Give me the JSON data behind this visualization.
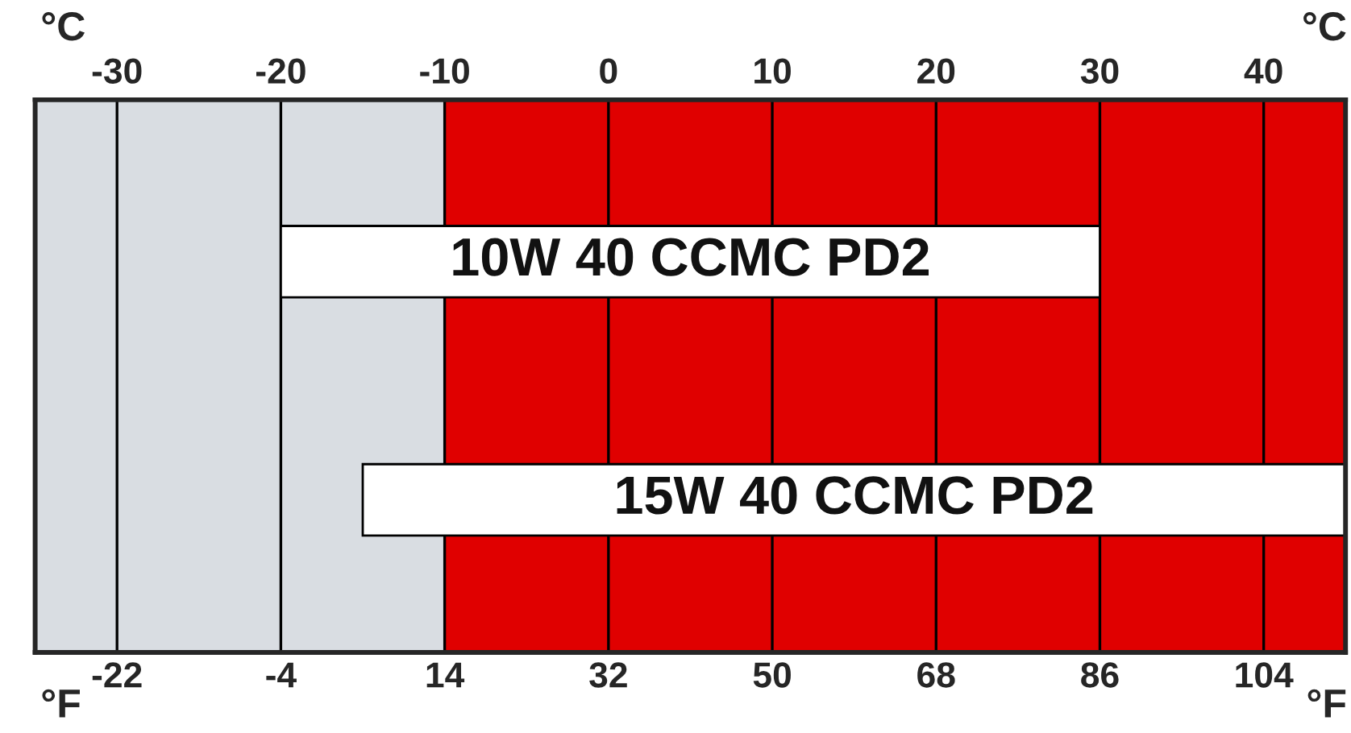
{
  "chart_data": {
    "type": "bar",
    "orientation": "horizontal",
    "categories": [
      "10W 40 CCMC PD2",
      "15W 40 CCMC PD2"
    ],
    "base": [
      -20,
      -15
    ],
    "values": [
      50,
      60
    ],
    "color": "#ffffff",
    "xlabel": "°C",
    "xlim": [
      -35,
      45
    ],
    "xticks": [
      -30,
      -20,
      -10,
      0,
      10,
      20,
      30,
      40
    ],
    "x2label": "°F",
    "x2lim": [
      -31,
      113
    ],
    "x2ticks": [
      -22,
      -4,
      14,
      32,
      50,
      68,
      86,
      104
    ],
    "bands": [
      {
        "axis": "x",
        "from": -35,
        "to": -10,
        "color": "#d9dde2"
      },
      {
        "axis": "x",
        "from": -10,
        "to": 45,
        "color": "#e00000"
      }
    ],
    "grid": "x"
  }
}
